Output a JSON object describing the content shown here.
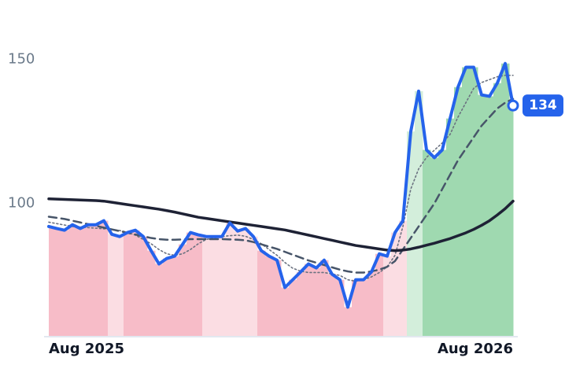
{
  "chart_data": {
    "type": "line",
    "xlim": [
      0,
      59
    ],
    "xticks": [
      {
        "value": 0,
        "label": "Aug 2025"
      },
      {
        "value": 59,
        "label": "Aug 2026"
      }
    ],
    "ylim": [
      54,
      170
    ],
    "yticks": [
      100,
      150
    ],
    "fill_colors": [
      "#f7bcc8",
      "#f7bcc8",
      "#f7bcc8",
      "#f7bcc8",
      "#f7bcc8",
      "#f7bcc8",
      "#f7bcc8",
      "#f7bcc8",
      "#fbdde3",
      "#fbdde3",
      "#f7bcc8",
      "#f7bcc8",
      "#f7bcc8",
      "#f7bcc8",
      "#f7bcc8",
      "#f7bcc8",
      "#f7bcc8",
      "#f7bcc8",
      "#f7bcc8",
      "#f7bcc8",
      "#fbdde3",
      "#fbdde3",
      "#fbdde3",
      "#fbdde3",
      "#fbdde3",
      "#fbdde3",
      "#fbdde3",
      "#f7bcc8",
      "#f7bcc8",
      "#f7bcc8",
      "#f7bcc8",
      "#f7bcc8",
      "#f7bcc8",
      "#f7bcc8",
      "#f7bcc8",
      "#f7bcc8",
      "#f7bcc8",
      "#f7bcc8",
      "#f7bcc8",
      "#f7bcc8",
      "#f7bcc8",
      "#f7bcc8",
      "#f7bcc8",
      "#fbdde3",
      "#fbdde3",
      "#fbdde3",
      "#d3eedb",
      "#d3eedb",
      "#9fd9b0",
      "#9fd9b0",
      "#9fd9b0",
      "#9fd9b0",
      "#9fd9b0",
      "#9fd9b0",
      "#9fd9b0",
      "#9fd9b0",
      "#9fd9b0",
      "#9fd9b0",
      "#9fd9b0",
      "#9fd9b0"
    ],
    "series": [
      {
        "color": "#2563eb",
        "style": "solid",
        "width": 4,
        "values": [
          92,
          91.3,
          90.7,
          92.6,
          91.3,
          92.6,
          92.6,
          94,
          89.3,
          88.5,
          89.9,
          90.7,
          88.5,
          83.6,
          79,
          80.9,
          81.7,
          85.8,
          89.9,
          89.1,
          88.5,
          88.5,
          88.5,
          93.2,
          90.4,
          91.3,
          88.5,
          83.6,
          81.7,
          80.3,
          70.8,
          73.5,
          76.2,
          79,
          77.6,
          80.3,
          75.4,
          73.5,
          64,
          73.5,
          73.5,
          76.2,
          82.5,
          81.7,
          89.9,
          94,
          125,
          139,
          118.6,
          115.9,
          118.6,
          129.5,
          140.4,
          147.3,
          147.3,
          137.7,
          137.2,
          141.8,
          148.6,
          134
        ]
      },
      {
        "color": "#1e2235",
        "style": "solid",
        "width": 3.5,
        "values": [
          101.6,
          101.5,
          101.4,
          101.3,
          101.2,
          101.1,
          101.0,
          100.8,
          100.4,
          100,
          99.6,
          99.2,
          98.8,
          98.4,
          98,
          97.5,
          97,
          96.4,
          95.8,
          95.2,
          94.8,
          94.4,
          94,
          93.6,
          93.2,
          92.8,
          92.4,
          92,
          91.6,
          91.2,
          90.8,
          90.2,
          89.6,
          89,
          88.4,
          87.8,
          87.2,
          86.6,
          86,
          85.4,
          85,
          84.6,
          84.2,
          83.8,
          83.6,
          83.8,
          84.2,
          84.8,
          85.5,
          86.2,
          87,
          87.8,
          88.8,
          89.8,
          91,
          92.4,
          94,
          96,
          98.2,
          100.8
        ]
      },
      {
        "color": "#475569",
        "style": "dashed",
        "width": 2.5,
        "values": [
          95.4,
          95,
          94.6,
          94,
          93.4,
          92.8,
          92.2,
          91.6,
          91,
          90.4,
          89.8,
          89.2,
          88.6,
          88,
          87.6,
          87.4,
          87.4,
          87.5,
          87.6,
          87.6,
          87.6,
          87.6,
          87.6,
          87.5,
          87.4,
          87.2,
          86.6,
          85.8,
          85,
          84.2,
          83.2,
          82.2,
          81.2,
          80.2,
          79.4,
          78.6,
          77.8,
          77,
          76.4,
          76,
          76,
          76.4,
          77,
          78,
          80,
          84,
          88,
          92,
          96,
          100,
          105,
          110,
          115,
          119,
          123,
          127,
          130,
          133,
          135,
          136.3
        ]
      },
      {
        "color": "#6b7280",
        "style": "dotted",
        "width": 1.6,
        "values": [
          93.5,
          93,
          92.5,
          92,
          91.8,
          91.6,
          91.4,
          91.2,
          91,
          90.6,
          90,
          89,
          87.5,
          86,
          84,
          82.5,
          82,
          82.5,
          84,
          86,
          87.5,
          88,
          88.5,
          88.8,
          89,
          88.6,
          87.5,
          86,
          84,
          82,
          79.5,
          77.5,
          76.5,
          76,
          76,
          76,
          75.5,
          75,
          73.5,
          73,
          73.5,
          74.5,
          76,
          78,
          82,
          92,
          105,
          112,
          116,
          118.5,
          121,
          124,
          130,
          135,
          140,
          142,
          143,
          144,
          144.5,
          144.5
        ]
      }
    ]
  }
}
